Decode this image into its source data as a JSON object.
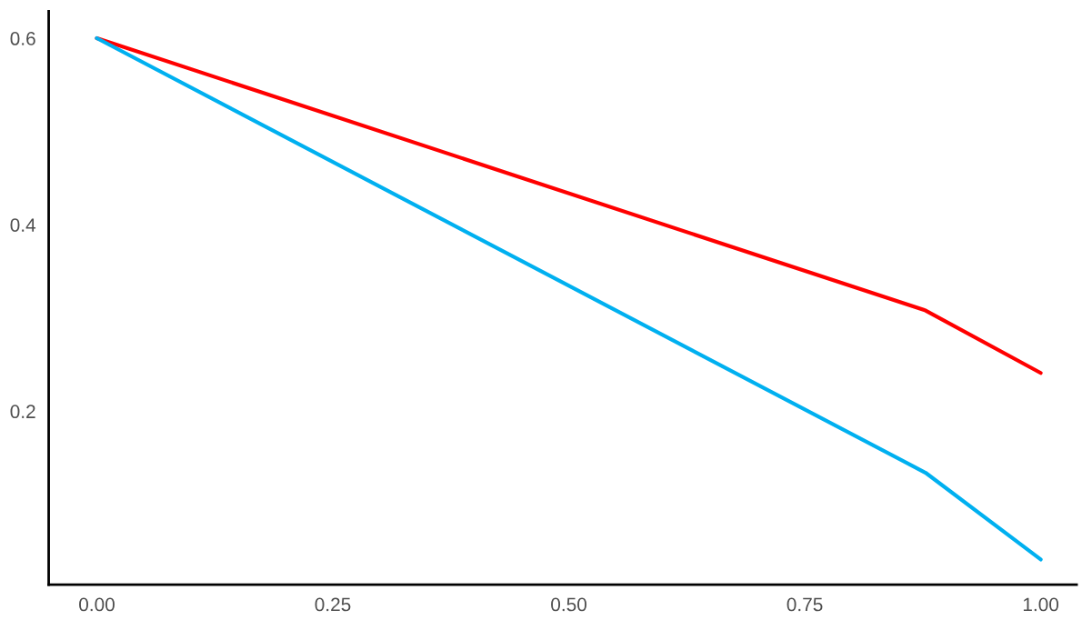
{
  "chart_data": {
    "type": "line",
    "x": [
      0,
      0.878,
      1
    ],
    "series": [
      {
        "color": "#ff0000",
        "values": [
          0.6,
          0.308,
          0.241
        ]
      },
      {
        "color": "#00b0f0",
        "values": [
          0.6,
          0.134,
          0.041
        ]
      }
    ],
    "xlim": [
      -0.051,
      1.038
    ],
    "ylim": [
      0.014,
      0.629
    ],
    "xticks": [
      {
        "value": 0,
        "label": "0.00"
      },
      {
        "value": 0.25,
        "label": "0.25"
      },
      {
        "value": 0.5,
        "label": "0.50"
      },
      {
        "value": 0.75,
        "label": "0.75"
      },
      {
        "value": 1,
        "label": "1.00"
      }
    ],
    "yticks": [
      0.2,
      0.4,
      0.6
    ],
    "grid": false,
    "legend": false,
    "line_style": "solid",
    "marker": "none"
  }
}
